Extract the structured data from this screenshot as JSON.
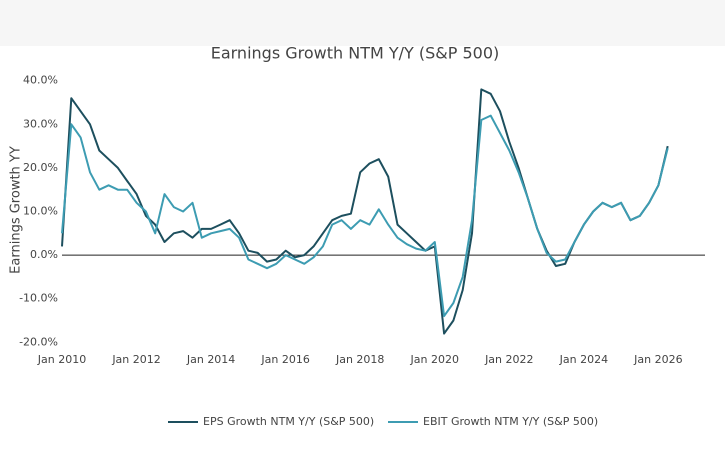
{
  "chart_data": {
    "type": "line",
    "title": "Earnings Growth NTM Y/Y (S&P 500)",
    "y_label": "Earnings Growth YY",
    "x": [
      "2010-01",
      "2010-04",
      "2010-07",
      "2010-10",
      "2011-01",
      "2011-04",
      "2011-07",
      "2011-10",
      "2012-01",
      "2012-04",
      "2012-07",
      "2012-10",
      "2013-01",
      "2013-04",
      "2013-07",
      "2013-10",
      "2014-01",
      "2014-04",
      "2014-07",
      "2014-10",
      "2015-01",
      "2015-04",
      "2015-07",
      "2015-10",
      "2016-01",
      "2016-04",
      "2016-07",
      "2016-10",
      "2017-01",
      "2017-04",
      "2017-07",
      "2017-10",
      "2018-01",
      "2018-04",
      "2018-07",
      "2018-10",
      "2019-01",
      "2019-04",
      "2019-07",
      "2019-10",
      "2020-01",
      "2020-04",
      "2020-07",
      "2020-10",
      "2021-01",
      "2021-04",
      "2021-07",
      "2021-10",
      "2022-01",
      "2022-04",
      "2022-07",
      "2022-10",
      "2023-01",
      "2023-04",
      "2023-07",
      "2023-10",
      "2024-01",
      "2024-04",
      "2024-07",
      "2024-10",
      "2025-01",
      "2025-04",
      "2025-07",
      "2025-10",
      "2026-01",
      "2026-04"
    ],
    "series": [
      {
        "name": "EPS Growth NTM Y/Y (S&P 500)",
        "color": "#1d4f5e",
        "values": [
          2,
          36,
          33,
          30,
          24,
          22,
          20,
          17,
          14,
          9,
          7,
          3,
          5,
          5.5,
          4,
          6,
          6,
          7,
          8,
          5,
          1,
          0.5,
          -1.5,
          -1,
          1,
          -0.5,
          0,
          2,
          5,
          8,
          9,
          9.5,
          19,
          21,
          22,
          18,
          7,
          5,
          3,
          1,
          2,
          -18,
          -15,
          -8,
          5,
          38,
          37,
          33,
          26,
          20,
          13,
          6,
          1,
          -2.5,
          -2,
          3,
          7,
          10,
          12,
          11,
          12,
          8,
          9,
          12,
          16,
          25
        ]
      },
      {
        "name": "EBIT Growth NTM Y/Y (S&P 500)",
        "color": "#3d9cb2",
        "values": [
          5,
          30,
          27,
          19,
          15,
          16,
          15,
          15,
          12,
          10,
          5,
          14,
          11,
          10,
          12,
          4,
          5,
          5.5,
          6,
          4,
          -1,
          -2,
          -3,
          -2,
          0,
          -1,
          -2,
          -0.5,
          2,
          7,
          8,
          6,
          8,
          7,
          10.5,
          7,
          4,
          2.5,
          1.5,
          1,
          3,
          -14,
          -11,
          -5,
          8,
          31,
          32,
          28,
          24,
          19,
          13,
          6,
          0.5,
          -1.5,
          -1,
          3,
          7,
          10,
          12,
          11,
          12,
          8,
          9,
          12,
          16,
          24.5
        ]
      }
    ],
    "xlim": [
      "2010-01",
      "2027-04"
    ],
    "xticks": [
      {
        "value": "2010-01",
        "label": "Jan 2010"
      },
      {
        "value": "2012-01",
        "label": "Jan 2012"
      },
      {
        "value": "2014-01",
        "label": "Jan 2014"
      },
      {
        "value": "2016-01",
        "label": "Jan 2016"
      },
      {
        "value": "2018-01",
        "label": "Jan 2018"
      },
      {
        "value": "2020-01",
        "label": "Jan 2020"
      },
      {
        "value": "2022-01",
        "label": "Jan 2022"
      },
      {
        "value": "2024-01",
        "label": "Jan 2024"
      },
      {
        "value": "2026-01",
        "label": "Jan 2026"
      }
    ],
    "ylim": [
      -22,
      42
    ],
    "yticks": [
      {
        "value": 40,
        "label": "40.0%"
      },
      {
        "value": 30,
        "label": "30.0%"
      },
      {
        "value": 20,
        "label": "20.0%"
      },
      {
        "value": 10,
        "label": "10.0%"
      },
      {
        "value": 0,
        "label": "0.0%"
      },
      {
        "value": -10,
        "label": "-10.0%"
      },
      {
        "value": -20,
        "label": "-20.0%"
      }
    ],
    "grid": false,
    "zeroline": true,
    "legend": "bottom"
  }
}
